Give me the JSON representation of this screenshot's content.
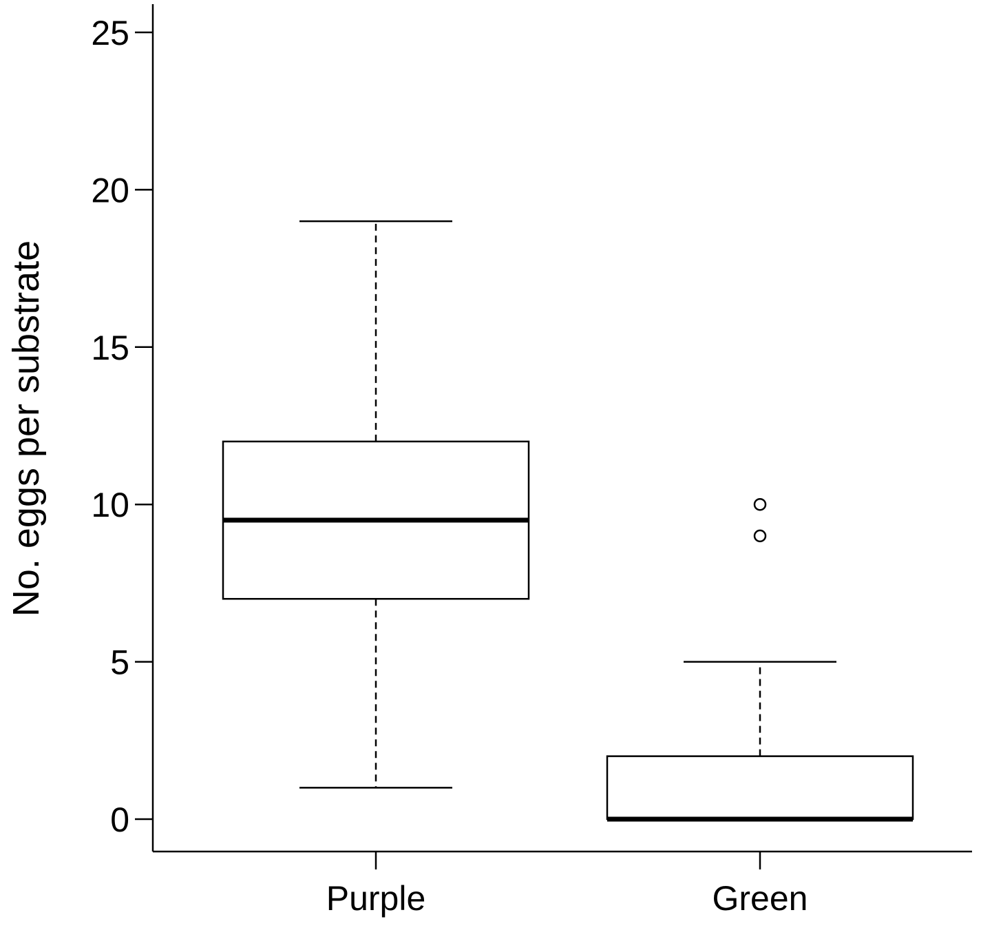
{
  "chart_data": {
    "type": "box",
    "title": "",
    "xlabel": "",
    "ylabel": "No. eggs per substrate",
    "ylim": [
      0,
      25
    ],
    "yticks": [
      "0",
      "5",
      "10",
      "15",
      "20",
      "25"
    ],
    "grid": false,
    "categories": [
      "Purple",
      "Green"
    ],
    "boxes": [
      {
        "category": "Purple",
        "whisker_low": 1,
        "q1": 7,
        "median": 9.5,
        "q3": 12,
        "whisker_high": 19,
        "outliers": []
      },
      {
        "category": "Green",
        "whisker_low": 0,
        "q1": 0,
        "median": 0,
        "q3": 2,
        "whisker_high": 5,
        "outliers": [
          9,
          10
        ]
      }
    ],
    "colors": {
      "box_fill": "#ffffff",
      "stroke": "#000000"
    }
  }
}
